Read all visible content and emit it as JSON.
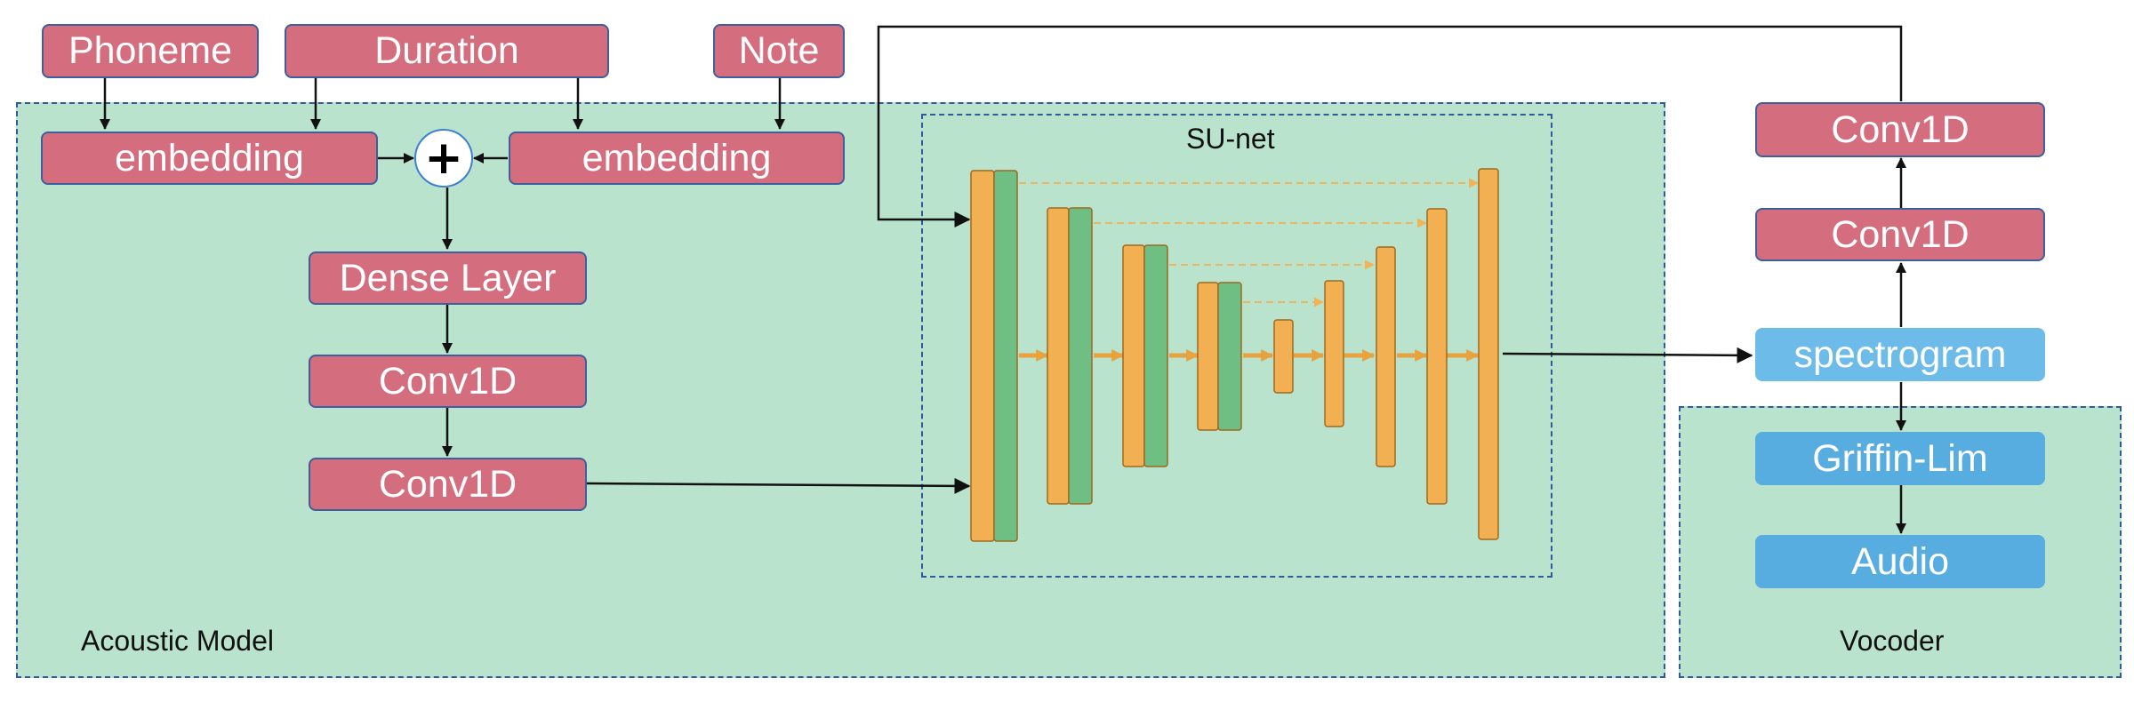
{
  "colors": {
    "region_fill": "#bae3cd",
    "region_border": "#2f5a9e",
    "pink_node": "#d46e7e",
    "spectrogram_node": "#6cbbe8",
    "vocoder_node": "#57ade0",
    "orange_bar": "#f3b052",
    "green_bar": "#6fbe83"
  },
  "inputs": {
    "phoneme": "Phoneme",
    "duration": "Duration",
    "note": "Note"
  },
  "acoustic": {
    "embedding_left": "embedding",
    "embedding_right": "embedding",
    "plus_symbol": "+",
    "dense": "Dense Layer",
    "conv1": "Conv1D",
    "conv2": "Conv1D",
    "caption": "Acoustic Model"
  },
  "sunet": {
    "caption": "SU-net"
  },
  "vocoder": {
    "conv_top": "Conv1D",
    "conv_mid": "Conv1D",
    "spectrogram": "spectrogram",
    "griffin_lim": "Griffin-Lim",
    "audio": "Audio",
    "caption": "Vocoder"
  }
}
